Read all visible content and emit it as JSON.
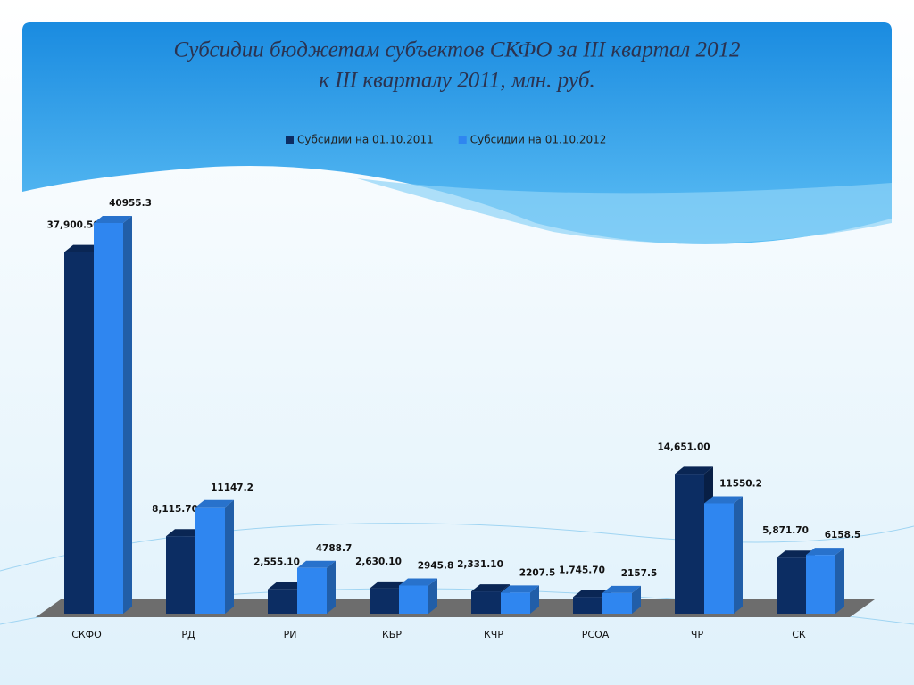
{
  "chart_data": {
    "type": "bar",
    "title": [
      "Субсидии бюджетам субъектов СКФО за III квартал 2012",
      "к III кварталу 2011, млн. руб."
    ],
    "categories": [
      "СКФО",
      "РД",
      "РИ",
      "КБР",
      "КЧР",
      "РСОА",
      "ЧР",
      "СК"
    ],
    "legend": "top",
    "series": [
      {
        "name": "Субсидии на 01.10.2011",
        "color": "#0c2d63",
        "values": [
          37900.5,
          8115.7,
          2555.1,
          2630.1,
          2331.1,
          1745.7,
          14651.0,
          5871.7
        ],
        "value_labels": [
          "37,900.50",
          "8,115.70",
          "2,555.10",
          "2,630.10",
          "2,331.10",
          "1,745.70",
          "14,651.00",
          "5,871.70"
        ]
      },
      {
        "name": "Субсидии на 01.10.2012",
        "color": "#2f86f0",
        "values": [
          40955.3,
          11147.2,
          4788.7,
          2945.8,
          2207.5,
          2157.5,
          11550.2,
          6158.5
        ]
      }
    ]
  }
}
